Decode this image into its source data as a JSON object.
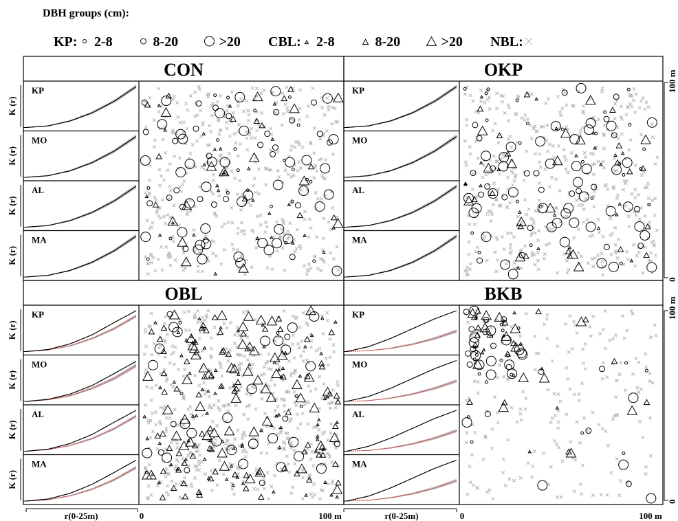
{
  "legend": {
    "title": "DBH groups (cm):",
    "groups": [
      {
        "label": "KP:",
        "symbol": "circle",
        "classes": [
          {
            "label": "2-8",
            "size": "small"
          },
          {
            "label": "8-20",
            "size": "medium"
          },
          {
            "label": ">20",
            "size": "large"
          }
        ]
      },
      {
        "label": "CBL:",
        "symbol": "triangle",
        "classes": [
          {
            "label": "2-8",
            "size": "small"
          },
          {
            "label": "8-20",
            "size": "medium"
          },
          {
            "label": ">20",
            "size": "large"
          }
        ]
      },
      {
        "label": "NBL:",
        "symbol": "cross",
        "classes": []
      }
    ]
  },
  "colors": {
    "observed_line": "#000000",
    "envelope": "#bdbdbd",
    "expected_line": "#d62728",
    "nbl_cross": "#b3b3b3",
    "tree_symbol": "#000000"
  },
  "axis_labels": {
    "k_ylabel": "K (r)",
    "r_xlabel": "r(0-25m)",
    "map_x_min": "0",
    "map_x_max": "100 m",
    "map_y_min": "0",
    "map_y_max": "100 m"
  },
  "chart_data": [
    {
      "type": "line",
      "title": "CON",
      "map": {
        "type": "scatter",
        "xlim": [
          0,
          100
        ],
        "ylim": [
          0,
          100
        ],
        "density": "moderate"
      },
      "k_panels": [
        {
          "label": "KP",
          "r": [
            0,
            5,
            10,
            15,
            20,
            25
          ],
          "observed": [
            0,
            0.04,
            0.16,
            0.36,
            0.64,
            1.0
          ],
          "expected": [
            0,
            0.04,
            0.16,
            0.36,
            0.64,
            1.0
          ],
          "envelope_width": 0.05
        },
        {
          "label": "MO",
          "r": [
            0,
            5,
            10,
            15,
            20,
            25
          ],
          "observed": [
            0,
            0.04,
            0.16,
            0.36,
            0.64,
            1.0
          ],
          "expected": [
            0,
            0.04,
            0.16,
            0.36,
            0.64,
            1.0
          ],
          "envelope_width": 0.05
        },
        {
          "label": "AL",
          "r": [
            0,
            5,
            10,
            15,
            20,
            25
          ],
          "observed": [
            0,
            0.04,
            0.16,
            0.36,
            0.64,
            1.0
          ],
          "expected": [
            0,
            0.04,
            0.16,
            0.36,
            0.64,
            1.0
          ],
          "envelope_width": 0.05
        },
        {
          "label": "MA",
          "r": [
            0,
            5,
            10,
            15,
            20,
            25
          ],
          "observed": [
            0,
            0.04,
            0.16,
            0.36,
            0.64,
            1.0
          ],
          "expected": [
            0,
            0.04,
            0.16,
            0.36,
            0.64,
            1.0
          ],
          "envelope_width": 0.05
        }
      ]
    },
    {
      "type": "line",
      "title": "OKP",
      "map": {
        "type": "scatter",
        "xlim": [
          0,
          100
        ],
        "ylim": [
          0,
          100
        ],
        "density": "moderate"
      },
      "k_panels": [
        {
          "label": "KP",
          "r": [
            0,
            5,
            10,
            15,
            20,
            25
          ],
          "observed": [
            0,
            0.04,
            0.16,
            0.36,
            0.64,
            1.0
          ],
          "expected": [
            0,
            0.04,
            0.16,
            0.36,
            0.64,
            1.0
          ],
          "envelope_width": 0.05
        },
        {
          "label": "MO",
          "r": [
            0,
            5,
            10,
            15,
            20,
            25
          ],
          "observed": [
            0,
            0.04,
            0.16,
            0.36,
            0.64,
            1.0
          ],
          "expected": [
            0,
            0.04,
            0.16,
            0.36,
            0.64,
            1.0
          ],
          "envelope_width": 0.05
        },
        {
          "label": "AL",
          "r": [
            0,
            5,
            10,
            15,
            20,
            25
          ],
          "observed": [
            0,
            0.04,
            0.16,
            0.36,
            0.64,
            1.0
          ],
          "expected": [
            0,
            0.04,
            0.16,
            0.36,
            0.64,
            1.0
          ],
          "envelope_width": 0.05
        },
        {
          "label": "MA",
          "r": [
            0,
            5,
            10,
            15,
            20,
            25
          ],
          "observed": [
            0,
            0.04,
            0.16,
            0.36,
            0.64,
            1.0
          ],
          "expected": [
            0,
            0.04,
            0.16,
            0.36,
            0.64,
            1.0
          ],
          "envelope_width": 0.05
        }
      ]
    },
    {
      "type": "line",
      "title": "OBL",
      "map": {
        "type": "scatter",
        "xlim": [
          0,
          100
        ],
        "ylim": [
          0,
          100
        ],
        "density": "high"
      },
      "k_panels": [
        {
          "label": "KP",
          "r": [
            0,
            5,
            10,
            15,
            20,
            25
          ],
          "observed": [
            0,
            0.05,
            0.19,
            0.41,
            0.71,
            1.0
          ],
          "expected": [
            0,
            0.04,
            0.14,
            0.32,
            0.56,
            0.87
          ],
          "envelope_width": 0.04
        },
        {
          "label": "MO",
          "r": [
            0,
            5,
            10,
            15,
            20,
            25
          ],
          "observed": [
            0,
            0.05,
            0.18,
            0.39,
            0.68,
            0.98
          ],
          "expected": [
            0,
            0.04,
            0.14,
            0.32,
            0.56,
            0.88
          ],
          "envelope_width": 0.05
        },
        {
          "label": "AL",
          "r": [
            0,
            5,
            10,
            15,
            20,
            25
          ],
          "observed": [
            0,
            0.05,
            0.19,
            0.41,
            0.71,
            1.0
          ],
          "expected": [
            0,
            0.04,
            0.14,
            0.31,
            0.55,
            0.86
          ],
          "envelope_width": 0.04
        },
        {
          "label": "MA",
          "r": [
            0,
            5,
            10,
            15,
            20,
            25
          ],
          "observed": [
            0,
            0.05,
            0.19,
            0.41,
            0.7,
            1.0
          ],
          "expected": [
            0,
            0.03,
            0.13,
            0.29,
            0.52,
            0.82
          ],
          "envelope_width": 0.04
        }
      ]
    },
    {
      "type": "line",
      "title": "BKB",
      "map": {
        "type": "scatter",
        "xlim": [
          0,
          100
        ],
        "ylim": [
          0,
          100
        ],
        "density": "sparse"
      },
      "k_panels": [
        {
          "label": "KP",
          "r": [
            0,
            5,
            10,
            15,
            20,
            25
          ],
          "observed": [
            0,
            0.12,
            0.32,
            0.56,
            0.8,
            1.0
          ],
          "expected": [
            0,
            0.02,
            0.08,
            0.18,
            0.32,
            0.5
          ],
          "envelope_width": 0.04
        },
        {
          "label": "MO",
          "r": [
            0,
            5,
            10,
            15,
            20,
            25
          ],
          "observed": [
            0,
            0.12,
            0.32,
            0.56,
            0.8,
            1.0
          ],
          "expected": [
            0,
            0.02,
            0.08,
            0.18,
            0.32,
            0.5
          ],
          "envelope_width": 0.04
        },
        {
          "label": "AL",
          "r": [
            0,
            5,
            10,
            15,
            20,
            25
          ],
          "observed": [
            0,
            0.12,
            0.32,
            0.56,
            0.8,
            1.0
          ],
          "expected": [
            0,
            0.02,
            0.08,
            0.18,
            0.32,
            0.5
          ],
          "envelope_width": 0.04
        },
        {
          "label": "MA",
          "r": [
            0,
            5,
            10,
            15,
            20,
            25
          ],
          "observed": [
            0,
            0.12,
            0.32,
            0.56,
            0.8,
            1.0
          ],
          "expected": [
            0,
            0.02,
            0.08,
            0.18,
            0.32,
            0.5
          ],
          "envelope_width": 0.04
        }
      ]
    }
  ]
}
